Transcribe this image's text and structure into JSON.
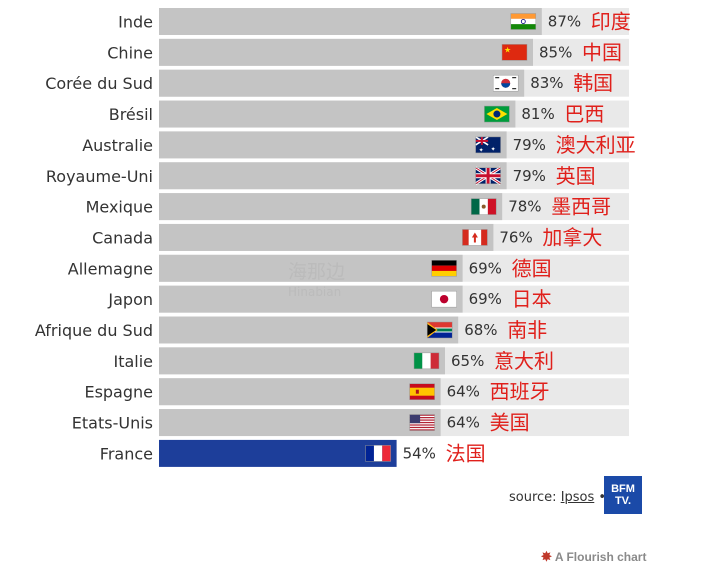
{
  "chart_data": {
    "type": "bar",
    "orientation": "horizontal",
    "categories": [
      "Inde",
      "Chine",
      "Corée du Sud",
      "Brésil",
      "Australie",
      "Royaume-Uni",
      "Mexique",
      "Canada",
      "Allemagne",
      "Japon",
      "Afrique du Sud",
      "Italie",
      "Espagne",
      "Etats-Unis",
      "France"
    ],
    "values": [
      87,
      85,
      83,
      81,
      79,
      79,
      78,
      76,
      69,
      69,
      68,
      65,
      64,
      64,
      54
    ],
    "value_labels": [
      "87%",
      "85%",
      "83%",
      "81%",
      "79%",
      "79%",
      "78%",
      "76%",
      "69%",
      "69%",
      "68%",
      "65%",
      "64%",
      "64%",
      "54%"
    ],
    "annotations_zh": [
      "印度",
      "中国",
      "韩国",
      "巴西",
      "澳大利亚",
      "英国",
      "墨西哥",
      "加拿大",
      "德国",
      "日本",
      "南非",
      "意大利",
      "西班牙",
      "美国",
      "法国"
    ],
    "flags": [
      "india-flag",
      "china-flag",
      "south-korea-flag",
      "brazil-flag",
      "australia-flag",
      "uk-flag",
      "mexico-flag",
      "canada-flag",
      "germany-flag",
      "japan-flag",
      "south-africa-flag",
      "italy-flag",
      "spain-flag",
      "usa-flag",
      "france-flag"
    ],
    "xlim": [
      0,
      100
    ],
    "colors": {
      "bar": "#c4c4c4",
      "highlight": "#1d3e9a",
      "annotation": "#e0201b"
    },
    "highlight_index": 14
  },
  "footer": {
    "source_prefix": "source: ",
    "source_link": "Ipsos",
    "source_suffix": " •",
    "logo_line1": "BFM",
    "logo_line2": "TV.",
    "flourish": "A Flourish chart"
  },
  "watermark": {
    "zh": "海那边",
    "en": "Hinabian"
  }
}
